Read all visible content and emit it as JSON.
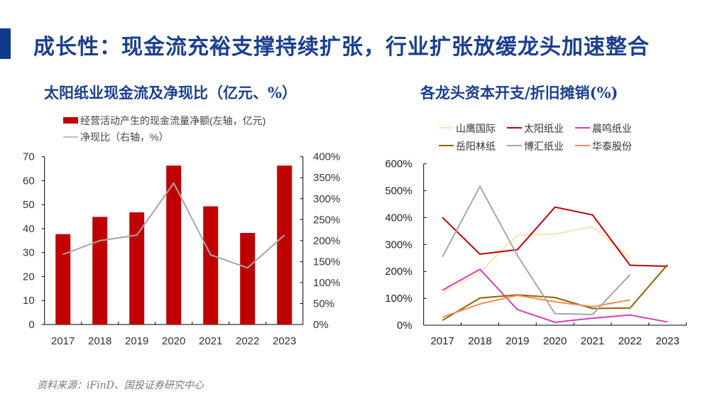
{
  "header": {
    "title": "成长性：现金流充裕支撑持续扩张，行业扩张放缓龙头加速整合",
    "accent_color": "#0f3b8c"
  },
  "footer": {
    "source": "资料来源：iFinD、国投证券研究中心"
  },
  "chart_data": [
    {
      "type": "bar",
      "title": "太阳纸业现金流及净现比（亿元、%）",
      "categories": [
        "2017",
        "2018",
        "2019",
        "2020",
        "2021",
        "2022",
        "2023"
      ],
      "series": [
        {
          "name": "经营活动产生的现金流量净额(左轴，亿元)",
          "type": "bar",
          "axis": "left",
          "color": "#c00000",
          "values": [
            37.7,
            44.9,
            46.8,
            66.3,
            49.3,
            38.2,
            66.3
          ]
        },
        {
          "name": "净现比（右轴，%）",
          "type": "line",
          "axis": "right",
          "color": "#a6a6a6",
          "values": [
            167,
            200,
            213,
            337,
            166,
            135,
            213
          ]
        }
      ],
      "y_left": {
        "min": 0,
        "max": 70,
        "ticks": [
          "0",
          "10",
          "20",
          "30",
          "40",
          "50",
          "60",
          "70"
        ]
      },
      "y_right": {
        "min": 0,
        "max": 400,
        "ticks": [
          "0%",
          "50%",
          "100%",
          "150%",
          "200%",
          "250%",
          "300%",
          "350%",
          "400%"
        ]
      },
      "legend": "top-left",
      "grid": false
    },
    {
      "type": "line",
      "title": "各龙头资本开支/折旧摊销(%)",
      "categories": [
        "2017",
        "2018",
        "2019",
        "2020",
        "2021",
        "2022",
        "2023"
      ],
      "series": [
        {
          "name": "山鹰国际",
          "color": "#fde3b0",
          "values": [
            120,
            197,
            335,
            339,
            366,
            252,
            null
          ]
        },
        {
          "name": "太阳纸业",
          "color": "#c00000",
          "values": [
            401,
            264,
            281,
            439,
            410,
            223,
            219
          ]
        },
        {
          "name": "晨鸣纸业",
          "color": "#d63cb5",
          "values": [
            130,
            208,
            58,
            11,
            26,
            38,
            12
          ]
        },
        {
          "name": "岳阳林纸",
          "color": "#8b6508",
          "values": [
            18,
            101,
            113,
            103,
            62,
            64,
            225
          ]
        },
        {
          "name": "博汇纸业",
          "color": "#a6a6a6",
          "values": [
            254,
            516,
            259,
            43,
            40,
            188,
            null
          ]
        },
        {
          "name": "华泰股份",
          "color": "#f08a5a",
          "values": [
            30,
            79,
            111,
            87,
            69,
            94,
            null
          ]
        }
      ],
      "y": {
        "min": 0,
        "max": 600,
        "ticks": [
          "0%",
          "100%",
          "200%",
          "300%",
          "400%",
          "500%",
          "600%"
        ]
      },
      "legend": "top",
      "grid": false
    }
  ]
}
